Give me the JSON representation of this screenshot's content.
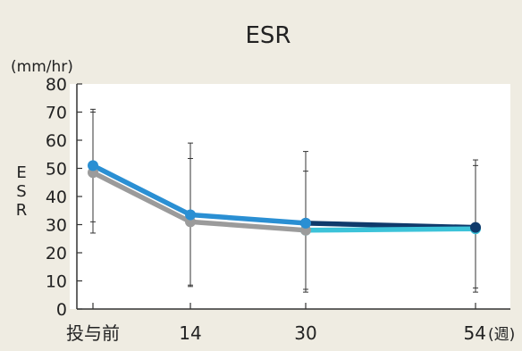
{
  "chart_data": {
    "type": "line",
    "title": "ESR",
    "ylabel": "ESR",
    "yunit": "(mm/hr)",
    "xunit": "(週)",
    "categories": [
      "投与前",
      "14",
      "30",
      "54"
    ],
    "ylim": [
      0,
      80
    ],
    "yticks": [
      0,
      10,
      20,
      30,
      40,
      50,
      60,
      70,
      80
    ],
    "grid": false,
    "series": [
      {
        "color": "#2a8fd3",
        "values": [
          51,
          33.5,
          30.5,
          null
        ],
        "err_low": [
          31,
          8,
          6,
          null
        ],
        "err_high": [
          71,
          59,
          56,
          null
        ]
      },
      {
        "color": "#9b9b9b",
        "values": [
          48.5,
          31,
          28,
          null
        ],
        "err_low": [
          27,
          8.5,
          7,
          null
        ],
        "err_high": [
          70,
          53.5,
          49,
          null
        ]
      },
      {
        "color": "#0f3a6b",
        "values": [
          null,
          null,
          30.5,
          29
        ],
        "err_low": [
          null,
          null,
          null,
          7.5
        ],
        "err_high": [
          null,
          null,
          null,
          53
        ]
      },
      {
        "color": "#3cc3d9",
        "values": [
          null,
          null,
          28,
          28.5
        ],
        "err_low": [
          null,
          null,
          null,
          6
        ],
        "err_high": [
          null,
          null,
          null,
          51
        ]
      }
    ]
  }
}
